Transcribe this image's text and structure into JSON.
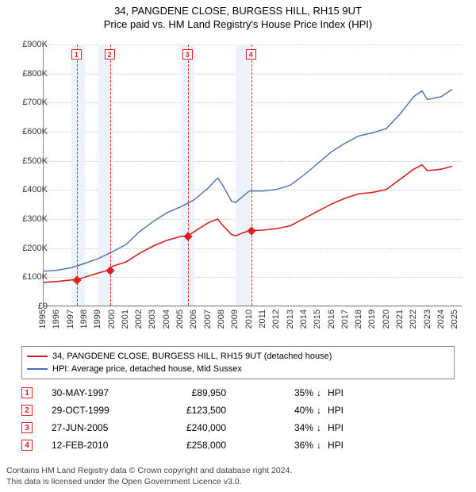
{
  "title": "34, PANGDENE CLOSE, BURGESS HILL, RH15 9UT",
  "subtitle": "Price paid vs. HM Land Registry's House Price Index (HPI)",
  "chart": {
    "type": "line",
    "background_color": "#ffffff",
    "grid_color": "#cccccc",
    "band_color": "#eef2fa",
    "x": {
      "min": 1995,
      "max": 2025.5,
      "ticks": [
        1995,
        1996,
        1997,
        1998,
        1999,
        2000,
        2001,
        2002,
        2003,
        2004,
        2005,
        2006,
        2007,
        2008,
        2009,
        2010,
        2011,
        2012,
        2013,
        2014,
        2015,
        2016,
        2017,
        2018,
        2019,
        2020,
        2021,
        2022,
        2023,
        2024,
        2025
      ]
    },
    "y": {
      "min": 0,
      "max": 900000,
      "tick_step": 100000,
      "prefix": "£",
      "suffix": "K",
      "divide": 1000
    },
    "bands": [
      [
        1997,
        1998
      ],
      [
        1999,
        2000
      ],
      [
        2005,
        2006
      ],
      [
        2009,
        2010
      ]
    ],
    "sale_markers": [
      {
        "n": 1,
        "x": 1997.41,
        "y": 89950
      },
      {
        "n": 2,
        "x": 1999.83,
        "y": 123500
      },
      {
        "n": 3,
        "x": 2005.49,
        "y": 240000
      },
      {
        "n": 4,
        "x": 2010.12,
        "y": 258000
      }
    ],
    "series": [
      {
        "name": "34, PANGDENE CLOSE, BURGESS HILL, RH15 9UT (detached house)",
        "color": "#d62020",
        "width": 1.6,
        "points": [
          [
            1995,
            80000
          ],
          [
            1996,
            83000
          ],
          [
            1997,
            88000
          ],
          [
            1997.41,
            89950
          ],
          [
            1998,
            98000
          ],
          [
            1999,
            112000
          ],
          [
            1999.83,
            123500
          ],
          [
            2000,
            135000
          ],
          [
            2001,
            150000
          ],
          [
            2002,
            180000
          ],
          [
            2003,
            205000
          ],
          [
            2004,
            225000
          ],
          [
            2005,
            238000
          ],
          [
            2005.49,
            240000
          ],
          [
            2006,
            255000
          ],
          [
            2007,
            285000
          ],
          [
            2007.7,
            298000
          ],
          [
            2008,
            280000
          ],
          [
            2008.7,
            245000
          ],
          [
            2009,
            240000
          ],
          [
            2009.5,
            250000
          ],
          [
            2010,
            258000
          ],
          [
            2010.12,
            258000
          ],
          [
            2011,
            260000
          ],
          [
            2012,
            265000
          ],
          [
            2013,
            275000
          ],
          [
            2014,
            300000
          ],
          [
            2015,
            325000
          ],
          [
            2016,
            350000
          ],
          [
            2017,
            370000
          ],
          [
            2018,
            385000
          ],
          [
            2019,
            390000
          ],
          [
            2020,
            400000
          ],
          [
            2021,
            435000
          ],
          [
            2022,
            470000
          ],
          [
            2022.6,
            485000
          ],
          [
            2023,
            465000
          ],
          [
            2024,
            470000
          ],
          [
            2024.8,
            480000
          ]
        ]
      },
      {
        "name": "HPI: Average price, detached house, Mid Sussex",
        "color": "#4a6db0",
        "width": 1.4,
        "points": [
          [
            1995,
            118000
          ],
          [
            1996,
            122000
          ],
          [
            1997,
            130000
          ],
          [
            1998,
            145000
          ],
          [
            1999,
            162000
          ],
          [
            2000,
            185000
          ],
          [
            2001,
            210000
          ],
          [
            2002,
            255000
          ],
          [
            2003,
            290000
          ],
          [
            2004,
            320000
          ],
          [
            2005,
            340000
          ],
          [
            2006,
            365000
          ],
          [
            2007,
            405000
          ],
          [
            2007.7,
            440000
          ],
          [
            2008,
            420000
          ],
          [
            2008.7,
            360000
          ],
          [
            2009,
            355000
          ],
          [
            2009.5,
            375000
          ],
          [
            2010,
            395000
          ],
          [
            2011,
            395000
          ],
          [
            2012,
            400000
          ],
          [
            2013,
            415000
          ],
          [
            2014,
            450000
          ],
          [
            2015,
            490000
          ],
          [
            2016,
            530000
          ],
          [
            2017,
            560000
          ],
          [
            2018,
            585000
          ],
          [
            2019,
            595000
          ],
          [
            2020,
            610000
          ],
          [
            2021,
            660000
          ],
          [
            2022,
            720000
          ],
          [
            2022.6,
            740000
          ],
          [
            2023,
            710000
          ],
          [
            2024,
            720000
          ],
          [
            2024.8,
            745000
          ]
        ]
      }
    ]
  },
  "legend": {
    "items": [
      {
        "color": "#d62020",
        "label": "34, PANGDENE CLOSE, BURGESS HILL, RH15 9UT (detached house)"
      },
      {
        "color": "#4a6db0",
        "label": "HPI: Average price, detached house, Mid Sussex"
      }
    ]
  },
  "sales": [
    {
      "n": 1,
      "date": "30-MAY-1997",
      "price": "£89,950",
      "pct": "35%",
      "dir": "↓",
      "suffix": "HPI"
    },
    {
      "n": 2,
      "date": "29-OCT-1999",
      "price": "£123,500",
      "pct": "40%",
      "dir": "↓",
      "suffix": "HPI"
    },
    {
      "n": 3,
      "date": "27-JUN-2005",
      "price": "£240,000",
      "pct": "34%",
      "dir": "↓",
      "suffix": "HPI"
    },
    {
      "n": 4,
      "date": "12-FEB-2010",
      "price": "£258,000",
      "pct": "36%",
      "dir": "↓",
      "suffix": "HPI"
    }
  ],
  "footer": {
    "line1": "Contains HM Land Registry data © Crown copyright and database right 2024.",
    "line2": "This data is licensed under the Open Government Licence v3.0."
  }
}
